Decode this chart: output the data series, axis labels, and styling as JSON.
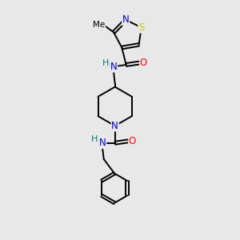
{
  "bg_color": "#e8e8e8",
  "atom_color_N_blue": "#0000cc",
  "atom_color_O": "#ff0000",
  "atom_color_S": "#cccc00",
  "atom_color_NH": "#008080",
  "bond_color": "#000000",
  "font_size": 8.5,
  "font_size_small": 7.5,
  "line_width": 1.4,
  "fig_width": 3.0,
  "fig_height": 3.0,
  "dpi": 100,
  "xlim": [
    0,
    10
  ],
  "ylim": [
    0,
    10
  ]
}
